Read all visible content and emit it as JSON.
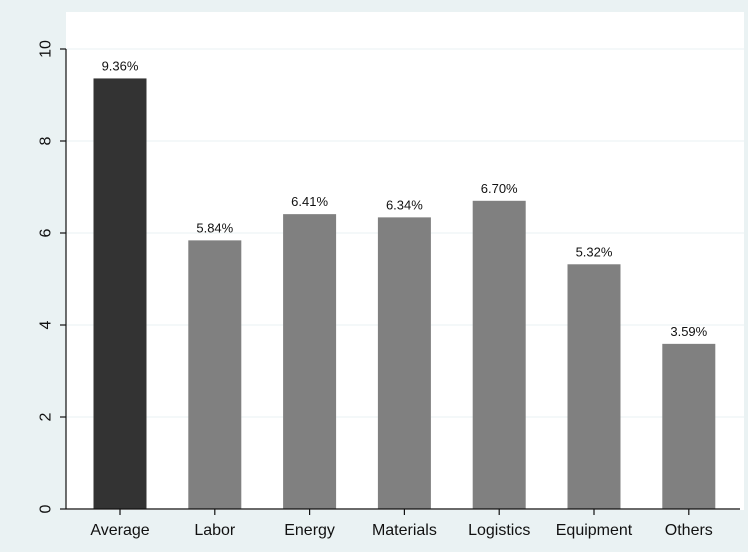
{
  "chart_data": {
    "type": "bar",
    "title": "",
    "xlabel": "",
    "ylabel": "",
    "categories": [
      "Average",
      "Labor",
      "Energy",
      "Materials",
      "Logistics",
      "Equipment",
      "Others"
    ],
    "values": [
      9.36,
      5.84,
      6.41,
      6.34,
      6.7,
      5.32,
      3.59
    ],
    "data_labels": [
      "9.36%",
      "5.84%",
      "6.41%",
      "6.34%",
      "6.70%",
      "5.32%",
      "3.59%"
    ],
    "ylim": [
      0,
      10
    ],
    "yticks": [
      0,
      2,
      4,
      6,
      8,
      10
    ],
    "ytick_labels": [
      "0",
      "2",
      "4",
      "6",
      "8",
      "10"
    ],
    "ytick_rotation": "vertical",
    "grid": "horizontal",
    "legend": "none",
    "colors": {
      "highlight_bar": "#333333",
      "bar": "#808080",
      "plot_background": "#ffffff",
      "figure_background": "#eaf2f3",
      "grid": "#eaf2f3",
      "axis": "#111111"
    }
  }
}
